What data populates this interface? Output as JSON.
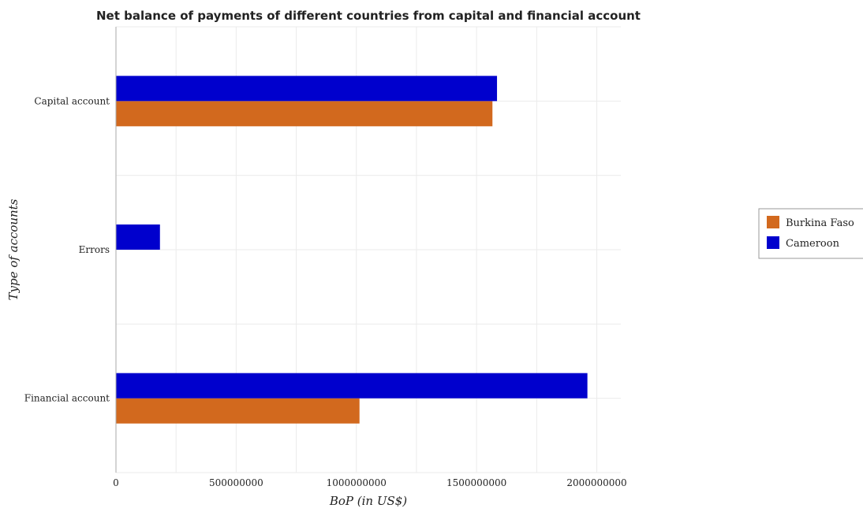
{
  "chart_data": {
    "type": "bar",
    "orientation": "horizontal",
    "title": "Net balance of payments of different countries  from capital and financial account",
    "xlabel": "BoP (in US$)",
    "ylabel": "Type of accounts",
    "categories": [
      "Capital account",
      "Errors",
      "Financial account"
    ],
    "xlim": [
      0,
      2100000000
    ],
    "xticks": [
      0,
      500000000,
      1000000000,
      1500000000,
      2000000000
    ],
    "xtick_labels": [
      "0",
      "500000000",
      "1000000000",
      "1500000000",
      "2000000000"
    ],
    "grid": true,
    "legend_position": "right",
    "series": [
      {
        "name": "Burkina Faso",
        "color": "#d2691e",
        "values": [
          1566000000,
          0,
          1013000000
        ]
      },
      {
        "name": "Cameroon",
        "color": "#0000cd",
        "values": [
          1585000000,
          183000000,
          1961000000
        ]
      }
    ]
  }
}
